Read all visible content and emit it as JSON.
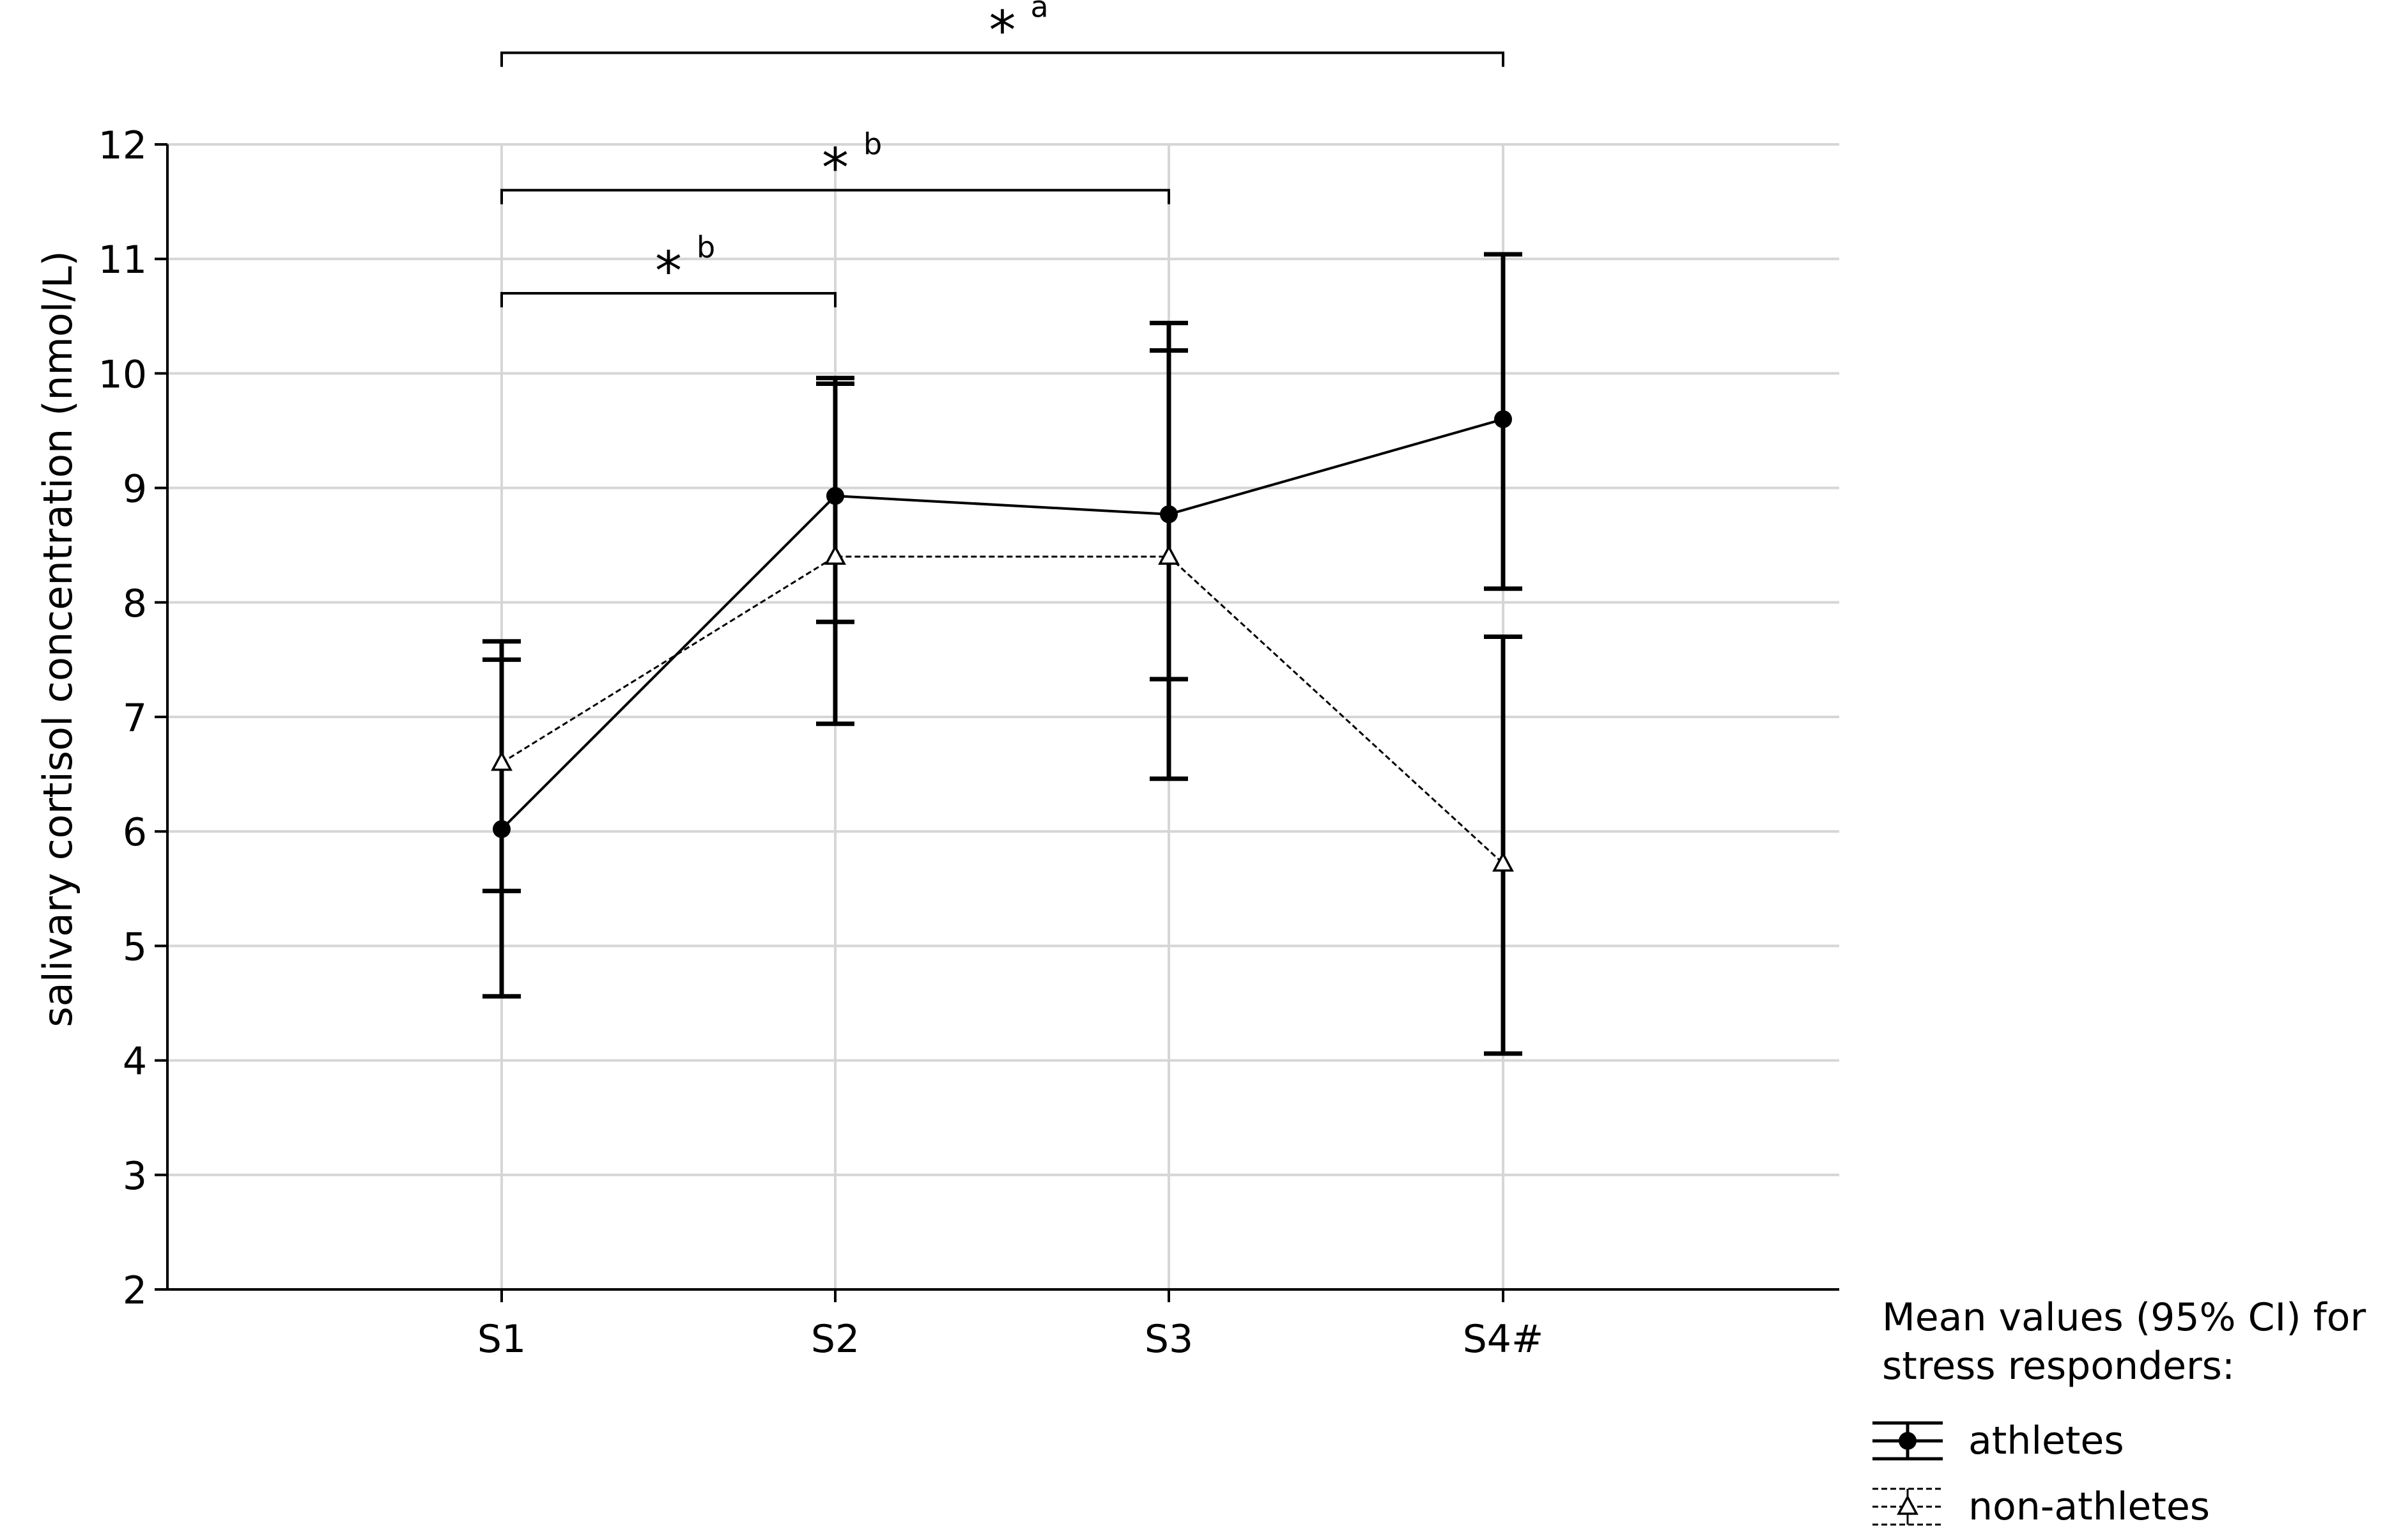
{
  "chart_data": {
    "type": "line",
    "title": "",
    "xlabel": "",
    "ylabel": "salivary cortisol concentration (nmol/L)",
    "ylim": [
      2,
      12
    ],
    "yticks": [
      "2",
      "3",
      "4",
      "5",
      "6",
      "7",
      "8",
      "9",
      "10",
      "11",
      "12"
    ],
    "categories": [
      "S1",
      "S2",
      "S3",
      "S4#"
    ],
    "grid": true,
    "series": [
      {
        "name": "athletes",
        "style": "solid",
        "marker": "filled-circle",
        "values": [
          6.02,
          8.93,
          8.77,
          9.6
        ],
        "ci_low": [
          4.56,
          7.83,
          7.33,
          8.12
        ],
        "ci_high": [
          7.5,
          9.91,
          10.2,
          11.04
        ]
      },
      {
        "name": "non-athletes",
        "style": "dashed",
        "marker": "open-triangle",
        "values": [
          6.6,
          8.4,
          8.4,
          5.72
        ],
        "ci_low": [
          5.48,
          6.94,
          6.46,
          4.06
        ],
        "ci_high": [
          7.66,
          9.96,
          10.44,
          7.7
        ]
      }
    ],
    "annotations": [
      {
        "from": "S1",
        "to": "S2",
        "level": 10.7,
        "label": "*",
        "sup": "b"
      },
      {
        "from": "S1",
        "to": "S3",
        "level": 11.6,
        "label": "*",
        "sup": "b"
      },
      {
        "from": "S1",
        "to": "S4#",
        "level": 12.8,
        "label": "*",
        "sup": "a"
      }
    ],
    "legend": {
      "title_line1": "Mean values (95% CI) for",
      "title_line2": "stress responders:",
      "position": "bottom-right"
    }
  }
}
